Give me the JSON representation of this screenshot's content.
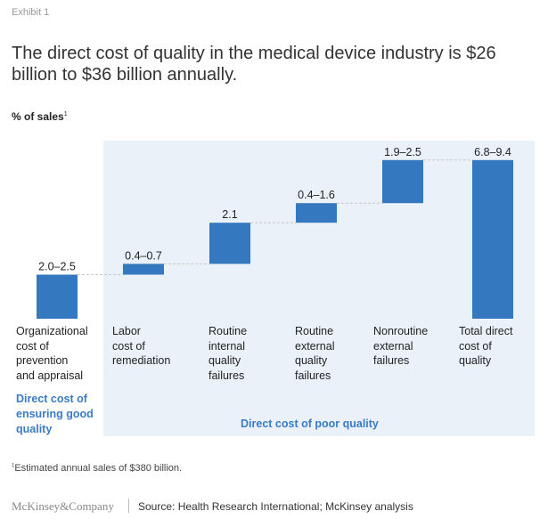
{
  "exhibit_label": "Exhibit 1",
  "title": "The direct cost of quality in the medical device industry is $26 billion to $36 billion annually.",
  "unit_label": "% of sales",
  "unit_footnote_mark": "1",
  "chart_data": {
    "type": "waterfall",
    "ylabel": "% of sales",
    "categories": [
      "Organizational cost of prevention and appraisal",
      "Labor cost of remediation",
      "Routine internal quality failures",
      "Routine external quality failures",
      "Nonroutine external failures",
      "Total direct cost of quality"
    ],
    "low": [
      2.0,
      0.4,
      2.1,
      0.4,
      1.9,
      6.8
    ],
    "high": [
      2.5,
      0.7,
      2.1,
      1.6,
      2.5,
      9.4
    ],
    "data_labels": [
      "2.0–2.5",
      "0.4–0.7",
      "2.1",
      "0.4–1.6",
      "1.9–2.5",
      "6.8–9.4"
    ],
    "is_total": [
      false,
      false,
      false,
      false,
      false,
      true
    ],
    "bar_color": "#3479bf",
    "group_labels": [
      "Direct cost of ensuring good quality",
      "Direct cost of poor quality"
    ],
    "group_color": "#3a7bc8",
    "panel_color": "#eaf1f9"
  },
  "category_lines": [
    [
      "Organizational",
      "cost of",
      "prevention",
      "and appraisal"
    ],
    [
      "Labor",
      "cost of",
      "remediation"
    ],
    [
      "Routine",
      "internal",
      "quality",
      "failures"
    ],
    [
      "Routine",
      "external",
      "quality",
      "failures"
    ],
    [
      "Nonroutine",
      "external",
      "failures"
    ],
    [
      "Total direct",
      "cost of",
      "quality"
    ]
  ],
  "group_left_lines": [
    "Direct cost of",
    "ensuring good",
    "quality"
  ],
  "footnote": "Estimated annual sales of $380 billion.",
  "footnote_mark": "1",
  "logo": "McKinsey&Company",
  "source": "Source: Health Research International; McKinsey analysis"
}
